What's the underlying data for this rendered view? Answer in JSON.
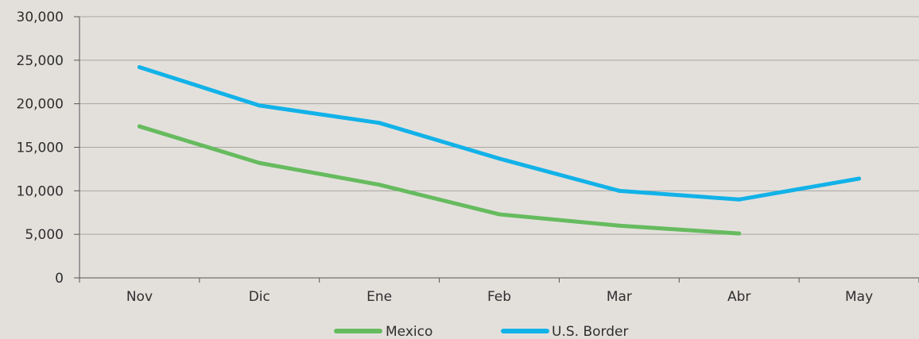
{
  "chart_data": {
    "type": "line",
    "categories": [
      "Nov",
      "Dic",
      "Ene",
      "Feb",
      "Mar",
      "Abr",
      "May"
    ],
    "yticks": [
      "0",
      "5,000",
      "10,000",
      "15,000",
      "20,000",
      "25,000",
      "30,000"
    ],
    "ylim": [
      0,
      30000
    ],
    "grid": true,
    "legend_position": "bottom",
    "series": [
      {
        "name": "Mexico",
        "color": "#66bb5e",
        "values": [
          17400,
          13200,
          10700,
          7300,
          6000,
          5100,
          null
        ]
      },
      {
        "name": "U.S. Border",
        "color": "#12b2e8",
        "values": [
          24200,
          19800,
          17800,
          13700,
          10000,
          9000,
          11400
        ]
      }
    ]
  }
}
